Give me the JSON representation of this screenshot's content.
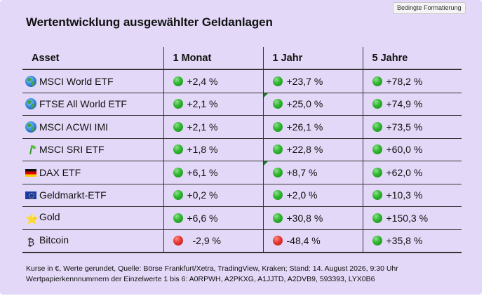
{
  "tooltip": "Bedingte Formatierung",
  "title": "Wertentwicklung ausgewählter Geldanlagen",
  "table": {
    "headers": [
      "Asset",
      "1 Monat",
      "1 Jahr",
      "5 Jahre"
    ],
    "rows": [
      {
        "icon": "globe-icon",
        "asset": "MSCI World ETF",
        "m1": "+2,4 %",
        "y1": "+23,7 %",
        "y5": "+78,2 %",
        "s1": "green",
        "s2": "green",
        "s3": "green"
      },
      {
        "icon": "globe-icon",
        "asset": "FTSE All World ETF",
        "m1": "+2,1 %",
        "y1": "+25,0 %",
        "y5": "+74,9 %",
        "s1": "green",
        "s2": "green",
        "s3": "green"
      },
      {
        "icon": "globe-icon",
        "asset": "MSCI ACWI IMI",
        "m1": "+2,1 %",
        "y1": "+26,1 %",
        "y5": "+73,5 %",
        "s1": "green",
        "s2": "green",
        "s3": "green"
      },
      {
        "icon": "seedling-icon",
        "asset": "MSCI SRI ETF",
        "m1": "+1,8 %",
        "y1": "+22,8 %",
        "y5": "+60,0 %",
        "s1": "green",
        "s2": "green",
        "s3": "green"
      },
      {
        "icon": "german-flag-icon",
        "asset": "DAX ETF",
        "m1": "+6,1 %",
        "y1": "+8,7 %",
        "y5": "+62,0 %",
        "s1": "green",
        "s2": "green",
        "s3": "green"
      },
      {
        "icon": "eu-flag-icon",
        "asset": "Geldmarkt-ETF",
        "m1": "+0,2 %",
        "y1": "+2,0 %",
        "y5": "+10,3 %",
        "s1": "green",
        "s2": "green",
        "s3": "green"
      },
      {
        "icon": "star-icon",
        "asset": "Gold",
        "m1": "+6,6 %",
        "y1": "+30,8 %",
        "y5": "+150,3 %",
        "s1": "green",
        "s2": "green",
        "s3": "green"
      },
      {
        "icon": "bitcoin-icon",
        "asset": "Bitcoin",
        "m1": "-2,9 %",
        "y1": "-48,4 %",
        "y5": "+35,8 %",
        "s1": "red",
        "s2": "red",
        "s3": "green"
      }
    ]
  },
  "footnote": {
    "line1": "Kurse in €, Werte gerundet, Quelle: Börse Frankfurt/Xetra, TradingView, Kraken; Stand: 14. August 2026, 9:30 Uhr",
    "line2": "Wertpapierkennnummern der Einzelwerte 1 bis 6: A0RPWH, A2PKXG, A1JJTD, A2DVB9, 593393, LYX0B6"
  },
  "colors": {
    "background": "#e3d8f7",
    "positive": "#2fb52f",
    "negative": "#e53935",
    "comment_marker": "#1f7a2a"
  }
}
